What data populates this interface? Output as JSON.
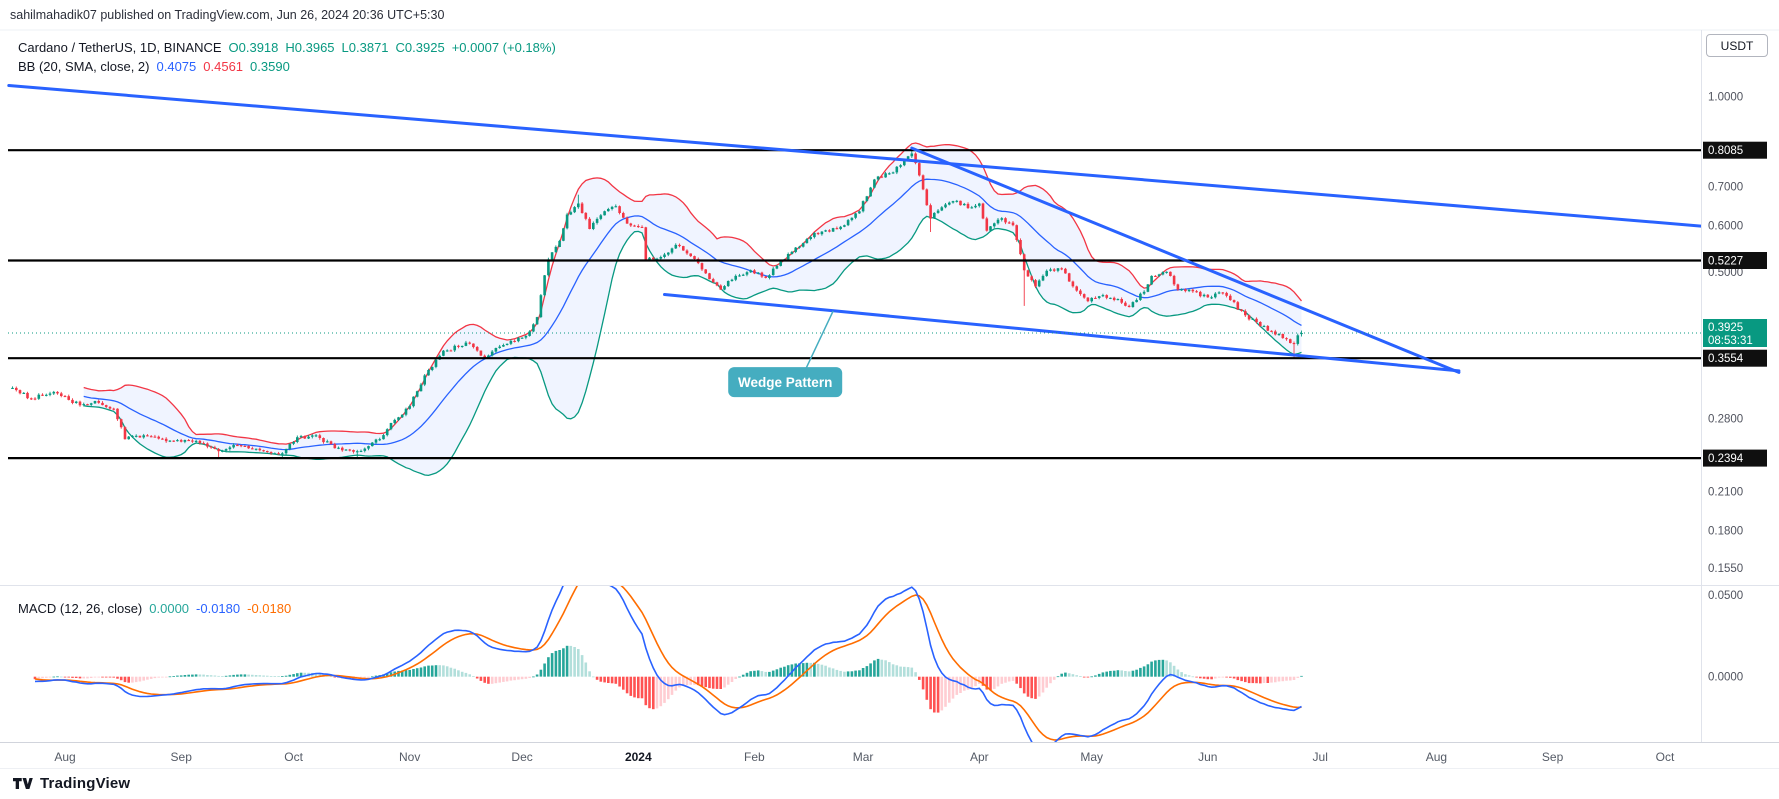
{
  "header": {
    "published_line": "sahilmahadik07 published on TradingView.com, Jun 26, 2024 20:36 UTC+5:30"
  },
  "toolbar": {
    "currency_button": "USDT"
  },
  "symbol_legend": {
    "title": "Cardano / TetherUS, 1D, BINANCE",
    "open": "O0.3918",
    "high": "H0.3965",
    "low": "L0.3871",
    "close": "C0.3925",
    "change": "+0.0007 (+0.18%)"
  },
  "bb_legend": {
    "label": "BB (20, SMA, close, 2)",
    "basis": "0.4075",
    "upper": "0.4561",
    "lower": "0.3590"
  },
  "macd_legend": {
    "label": "MACD (12, 26, close)",
    "histogram": "0.0000",
    "macd": "-0.0180",
    "signal": "-0.0180"
  },
  "annotations": {
    "wedge_label": "Wedge Pattern"
  },
  "footer": {
    "brand": "TradingView"
  },
  "chart_data": {
    "type": "candlestick",
    "title": "Cardano / TetherUS, 1D, BINANCE",
    "price_scale": {
      "type": "log",
      "min": 0.145,
      "max": 1.3,
      "tick_labels": [
        "1.0000",
        "0.7000",
        "0.6000",
        "0.5000",
        "0.2800",
        "0.2100",
        "0.1800",
        "0.1550"
      ]
    },
    "macd_scale": {
      "min": -0.04,
      "max": 0.0555,
      "tick_labels": [
        "0.0500",
        "0.0000"
      ]
    },
    "time_axis": {
      "labels": [
        {
          "text": "Aug",
          "date": "2023-08-01"
        },
        {
          "text": "Sep",
          "date": "2023-09-01"
        },
        {
          "text": "Oct",
          "date": "2023-10-01"
        },
        {
          "text": "Nov",
          "date": "2023-11-01"
        },
        {
          "text": "Dec",
          "date": "2023-12-01"
        },
        {
          "text": "2024",
          "date": "2024-01-01",
          "bold": true
        },
        {
          "text": "Feb",
          "date": "2024-02-01"
        },
        {
          "text": "Mar",
          "date": "2024-03-01"
        },
        {
          "text": "Apr",
          "date": "2024-04-01"
        },
        {
          "text": "May",
          "date": "2024-05-01"
        },
        {
          "text": "Jun",
          "date": "2024-06-01"
        },
        {
          "text": "Jul",
          "date": "2024-07-01"
        },
        {
          "text": "Aug",
          "date": "2024-08-01"
        },
        {
          "text": "Sep",
          "date": "2024-09-01"
        },
        {
          "text": "Oct",
          "date": "2024-10-01"
        }
      ]
    },
    "levels": [
      {
        "price": 0.8085,
        "label": "0.8085"
      },
      {
        "price": 0.5227,
        "label": "0.5227"
      },
      {
        "price": 0.3554,
        "label": "0.3554"
      },
      {
        "price": 0.2394,
        "label": "0.2394"
      }
    ],
    "current_price": {
      "price": 0.3925,
      "label": "0.3925",
      "countdown": "08:53:31"
    },
    "ohlc_last": {
      "o": 0.3918,
      "h": 0.3965,
      "l": 0.3871,
      "c": 0.3925
    },
    "trendlines": [
      {
        "name": "long-descending-resistance",
        "from": {
          "date": "2023-07-17",
          "price": 1.044
        },
        "to": {
          "date": "2024-10-12",
          "price": 0.598
        }
      },
      {
        "name": "wedge-upper",
        "from": {
          "date": "2024-03-14",
          "price": 0.815
        },
        "to": {
          "date": "2024-08-07",
          "price": 0.336
        }
      },
      {
        "name": "wedge-lower",
        "from": {
          "date": "2024-01-08",
          "price": 0.457
        },
        "to": {
          "date": "2024-08-07",
          "price": 0.338
        }
      }
    ],
    "wedge_callout": {
      "label_anchor": {
        "date": "2024-01-25",
        "price": 0.343
      },
      "pointer": {
        "date": "2024-02-22",
        "price": 0.428
      }
    },
    "indicators": {
      "bb": {
        "length": 20,
        "mult": 2
      },
      "macd": {
        "fast": 12,
        "slow": 26,
        "signal": 9
      }
    },
    "price_keyframes": [
      [
        "2023-07-18",
        0.316
      ],
      [
        "2023-07-23",
        0.303
      ],
      [
        "2023-07-29",
        0.311
      ],
      [
        "2023-08-05",
        0.295
      ],
      [
        "2023-08-09",
        0.3
      ],
      [
        "2023-08-14",
        0.291
      ],
      [
        "2023-08-17",
        0.258
      ],
      [
        "2023-08-22",
        0.262
      ],
      [
        "2023-08-28",
        0.256
      ],
      [
        "2023-09-04",
        0.256
      ],
      [
        "2023-09-11",
        0.246,
        0.2394,
        null
      ],
      [
        "2023-09-16",
        0.252
      ],
      [
        "2023-09-22",
        0.247
      ],
      [
        "2023-09-28",
        0.244,
        0.2394,
        null
      ],
      [
        "2023-10-02",
        0.26
      ],
      [
        "2023-10-07",
        0.262
      ],
      [
        "2023-10-12",
        0.249
      ],
      [
        "2023-10-18",
        0.246,
        0.24,
        null
      ],
      [
        "2023-10-24",
        0.258
      ],
      [
        "2023-10-27",
        0.275
      ],
      [
        "2023-11-01",
        0.294
      ],
      [
        "2023-11-05",
        0.332
      ],
      [
        "2023-11-10",
        0.366
      ],
      [
        "2023-11-14",
        0.372
      ],
      [
        "2023-11-16",
        0.378
      ],
      [
        "2023-11-21",
        0.356
      ],
      [
        "2023-11-25",
        0.372
      ],
      [
        "2023-11-29",
        0.38
      ],
      [
        "2023-12-02",
        0.388
      ],
      [
        "2023-12-05",
        0.418
      ],
      [
        "2023-12-08",
        0.525
      ],
      [
        "2023-12-11",
        0.565
      ],
      [
        "2023-12-13",
        0.627
      ],
      [
        "2023-12-16",
        0.655,
        null,
        0.678
      ],
      [
        "2023-12-19",
        0.592
      ],
      [
        "2023-12-22",
        0.625
      ],
      [
        "2023-12-26",
        0.648
      ],
      [
        "2023-12-29",
        0.605
      ],
      [
        "2024-01-02",
        0.596
      ],
      [
        "2024-01-03",
        0.525
      ],
      [
        "2024-01-07",
        0.53
      ],
      [
        "2024-01-11",
        0.556
      ],
      [
        "2024-01-15",
        0.532
      ],
      [
        "2024-01-19",
        0.497
      ],
      [
        "2024-01-23",
        0.466
      ],
      [
        "2024-01-27",
        0.492
      ],
      [
        "2024-01-31",
        0.503
      ],
      [
        "2024-02-04",
        0.488
      ],
      [
        "2024-02-08",
        0.522
      ],
      [
        "2024-02-13",
        0.552
      ],
      [
        "2024-02-17",
        0.583
      ],
      [
        "2024-02-21",
        0.586
      ],
      [
        "2024-02-25",
        0.601
      ],
      [
        "2024-02-29",
        0.635
      ],
      [
        "2024-03-04",
        0.72
      ],
      [
        "2024-03-08",
        0.738
      ],
      [
        "2024-03-11",
        0.762
      ],
      [
        "2024-03-14",
        0.798,
        null,
        0.8108
      ],
      [
        "2024-03-16",
        0.732
      ],
      [
        "2024-03-19",
        0.617,
        0.585,
        null
      ],
      [
        "2024-03-22",
        0.645
      ],
      [
        "2024-03-26",
        0.662
      ],
      [
        "2024-03-29",
        0.643
      ],
      [
        "2024-04-01",
        0.655
      ],
      [
        "2024-04-03",
        0.588
      ],
      [
        "2024-04-07",
        0.618
      ],
      [
        "2024-04-10",
        0.601
      ],
      [
        "2024-04-13",
        0.503,
        0.437,
        null
      ],
      [
        "2024-04-16",
        0.472
      ],
      [
        "2024-04-19",
        0.502
      ],
      [
        "2024-04-23",
        0.506
      ],
      [
        "2024-04-26",
        0.472
      ],
      [
        "2024-04-30",
        0.445
      ],
      [
        "2024-05-04",
        0.456
      ],
      [
        "2024-05-08",
        0.449
      ],
      [
        "2024-05-11",
        0.435
      ],
      [
        "2024-05-15",
        0.462
      ],
      [
        "2024-05-17",
        0.492
      ],
      [
        "2024-05-21",
        0.5
      ],
      [
        "2024-05-24",
        0.466
      ],
      [
        "2024-05-28",
        0.463
      ],
      [
        "2024-06-01",
        0.452
      ],
      [
        "2024-06-05",
        0.46
      ],
      [
        "2024-06-07",
        0.447
      ],
      [
        "2024-06-11",
        0.421
      ],
      [
        "2024-06-14",
        0.41
      ],
      [
        "2024-06-17",
        0.396
      ],
      [
        "2024-06-20",
        0.391
      ],
      [
        "2024-06-22",
        0.383
      ],
      [
        "2024-06-24",
        0.376,
        0.3554,
        null
      ],
      [
        "2024-06-25",
        0.389
      ],
      [
        "2024-06-26",
        0.3925
      ]
    ],
    "colors": {
      "up": "#089981",
      "down": "#F23645",
      "bb_basis": "#2962FF",
      "bb_upper": "#F23645",
      "bb_lower": "#089981",
      "bb_fill": "rgba(41,98,255,0.07)",
      "macd": "#2962FF",
      "signal": "#FF6D00",
      "hist_grow_above": "#26A69A",
      "hist_fall_above": "#B2DFDB",
      "hist_fall_below": "#FF5252",
      "hist_grow_below": "#FFCDD2",
      "trendline": "#2962FF",
      "level": "#000000",
      "badge": "#0F0F0F",
      "current": "#089981",
      "wedge": "#45ADC0"
    }
  }
}
